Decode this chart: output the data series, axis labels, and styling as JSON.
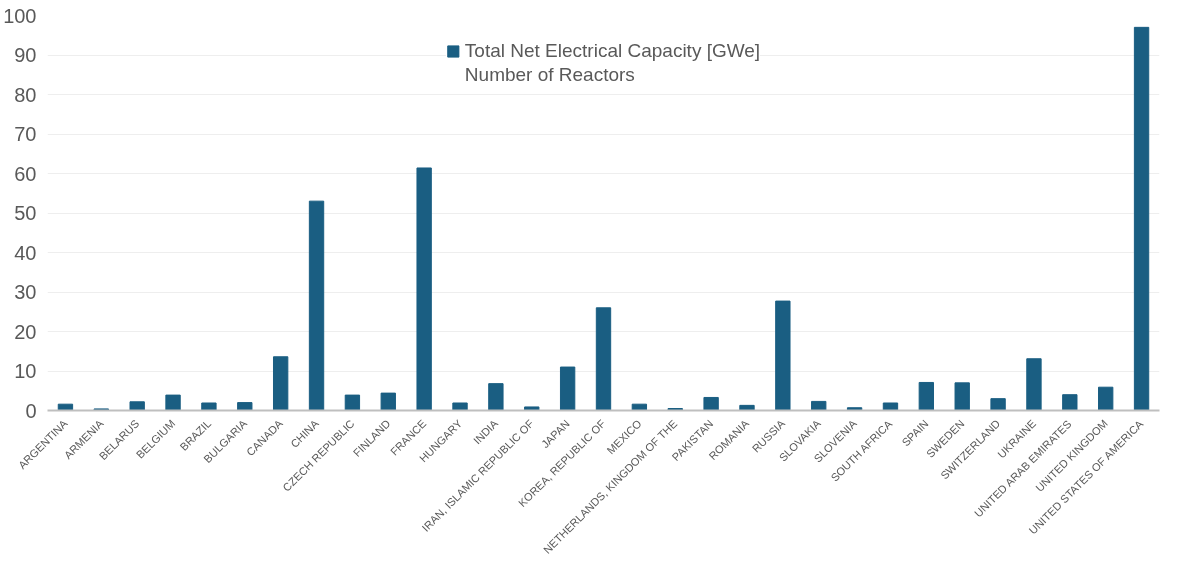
{
  "chart_data": {
    "type": "bar",
    "categories": [
      "ARGENTINA",
      "ARMENIA",
      "BELARUS",
      "BELGIUM",
      "BRAZIL",
      "BULGARIA",
      "CANADA",
      "CHINA",
      "CZECH REPUBLIC",
      "FINLAND",
      "FRANCE",
      "HUNGARY",
      "INDIA",
      "IRAN, ISLAMIC REPUBLIC OF",
      "JAPAN",
      "KOREA, REPUBLIC OF",
      "MEXICO",
      "NETHERLANDS, KINGDOM OF THE",
      "PAKISTAN",
      "ROMANIA",
      "RUSSIA",
      "SLOVAKIA",
      "SLOVENIA",
      "SOUTH AFRICA",
      "SPAIN",
      "SWEDEN",
      "SWITZERLAND",
      "UKRAINE",
      "UNITED ARAB EMIRATES",
      "UNITED KINGDOM",
      "UNITED STATES OF AMERICA"
    ],
    "series": [
      {
        "name": "Total Net Electrical Capacity [GWe]",
        "color": "#1a5e82",
        "values": [
          1.6,
          0.4,
          2.2,
          3.9,
          1.9,
          2.0,
          13.6,
          53,
          3.9,
          4.4,
          61.4,
          1.9,
          6.8,
          0.9,
          11.0,
          26,
          1.6,
          0.5,
          3.3,
          1.3,
          27.7,
          2.3,
          0.7,
          1.9,
          7.1,
          7.0,
          3.0,
          13.1,
          4.0,
          5.9,
          97
        ]
      },
      {
        "name": "Number of Reactors",
        "values": [
          null,
          null,
          null,
          null,
          null,
          null,
          null,
          null,
          null,
          null,
          null,
          null,
          null,
          null,
          null,
          null,
          null,
          null,
          null,
          null,
          null,
          null,
          null,
          null,
          null,
          null,
          null,
          null,
          null,
          null,
          null
        ]
      }
    ],
    "ylim": [
      0,
      100
    ],
    "yticks": [
      0,
      10,
      20,
      30,
      40,
      50,
      60,
      70,
      80,
      90,
      100
    ],
    "grid": "y",
    "legend": "top"
  }
}
